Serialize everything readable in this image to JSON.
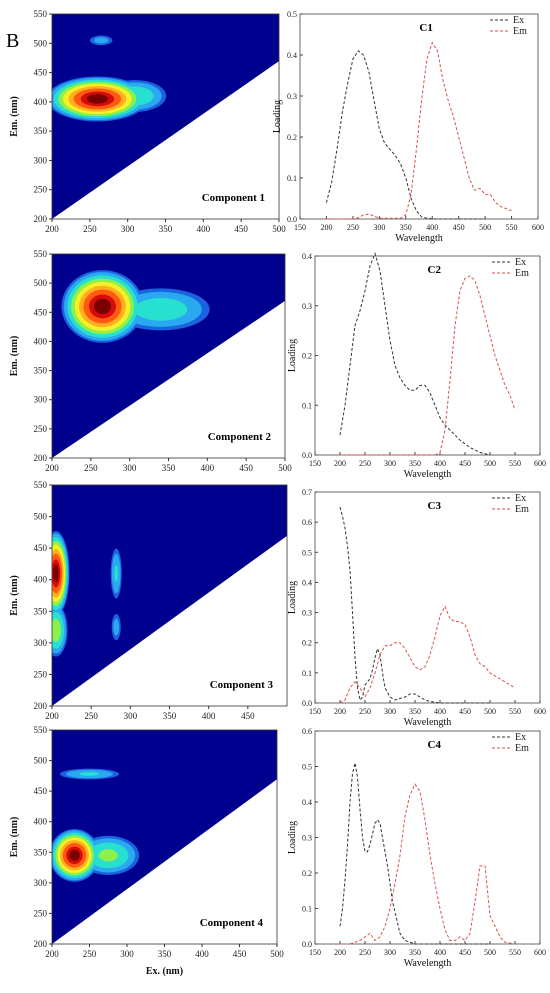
{
  "figure": {
    "panel_letter": "B"
  },
  "colors": {
    "ex": "#333333",
    "em": "#d9534f",
    "contour_bg": "#00008f"
  },
  "chart_data": [
    {
      "type": "heatmap",
      "label": "Component 1",
      "xlabel": "",
      "ylabel": "Em. (nm)",
      "xlim": [
        200,
        500
      ],
      "ylim": [
        200,
        550
      ],
      "x_ticks": [
        200,
        250,
        300,
        350,
        400,
        450,
        500
      ],
      "y_ticks": [
        200,
        250,
        300,
        350,
        400,
        450,
        500,
        550
      ],
      "peaks": [
        {
          "ex": 260,
          "em": 405,
          "rx": 70,
          "ry": 40,
          "intensity": 1.0
        },
        {
          "ex": 310,
          "em": 410,
          "rx": 45,
          "ry": 30,
          "intensity": 0.45
        },
        {
          "ex": 265,
          "em": 505,
          "rx": 18,
          "ry": 10,
          "intensity": 0.25
        }
      ]
    },
    {
      "type": "heatmap",
      "label": "Component 2",
      "xlabel": "",
      "ylabel": "Em. (nm)",
      "xlim": [
        200,
        500
      ],
      "ylim": [
        200,
        550
      ],
      "x_ticks": [
        200,
        250,
        300,
        350,
        400,
        450,
        500
      ],
      "y_ticks": [
        200,
        250,
        300,
        350,
        400,
        450,
        500,
        550
      ],
      "peaks": [
        {
          "ex": 265,
          "em": 460,
          "rx": 55,
          "ry": 65,
          "intensity": 1.0
        },
        {
          "ex": 340,
          "em": 455,
          "rx": 70,
          "ry": 40,
          "intensity": 0.42
        }
      ]
    },
    {
      "type": "heatmap",
      "label": "Component 3",
      "xlabel": "",
      "ylabel": "Em. (nm)",
      "xlim": [
        200,
        500
      ],
      "ylim": [
        200,
        550
      ],
      "x_ticks": [
        200,
        250,
        300,
        350,
        400,
        450
      ],
      "y_ticks": [
        200,
        250,
        300,
        350,
        400,
        450,
        500,
        550
      ],
      "peaks": [
        {
          "ex": 205,
          "em": 410,
          "rx": 18,
          "ry": 70,
          "intensity": 1.0
        },
        {
          "ex": 205,
          "em": 320,
          "rx": 16,
          "ry": 45,
          "intensity": 0.55
        },
        {
          "ex": 282,
          "em": 410,
          "rx": 8,
          "ry": 45,
          "intensity": 0.35
        },
        {
          "ex": 282,
          "em": 325,
          "rx": 7,
          "ry": 25,
          "intensity": 0.25
        }
      ]
    },
    {
      "type": "heatmap",
      "label": "Component 4",
      "xlabel": "Ex. (nm)",
      "ylabel": "Em. (nm)",
      "xlim": [
        200,
        500
      ],
      "ylim": [
        200,
        550
      ],
      "x_ticks": [
        200,
        250,
        300,
        350,
        400,
        450,
        500
      ],
      "y_ticks": [
        200,
        250,
        300,
        350,
        400,
        450,
        500,
        550
      ],
      "peaks": [
        {
          "ex": 230,
          "em": 345,
          "rx": 35,
          "ry": 45,
          "intensity": 1.0
        },
        {
          "ex": 275,
          "em": 345,
          "rx": 45,
          "ry": 35,
          "intensity": 0.5
        },
        {
          "ex": 250,
          "em": 478,
          "rx": 45,
          "ry": 10,
          "intensity": 0.35
        }
      ]
    },
    {
      "type": "line",
      "title": "C1",
      "xlabel": "Wavelength",
      "ylabel": "Loading",
      "xlim": [
        150,
        600
      ],
      "ylim": [
        0,
        0.5
      ],
      "x_ticks": [
        150,
        200,
        250,
        300,
        350,
        400,
        450,
        500,
        550,
        600
      ],
      "y_ticks": [
        0.0,
        0.1,
        0.2,
        0.3,
        0.4,
        0.5
      ],
      "series": [
        {
          "name": "Ex",
          "x": [
            200,
            210,
            220,
            230,
            240,
            250,
            260,
            270,
            280,
            290,
            300,
            310,
            320,
            330,
            340,
            350,
            360,
            370,
            380,
            390,
            400,
            450,
            500
          ],
          "y": [
            0.04,
            0.09,
            0.17,
            0.26,
            0.33,
            0.39,
            0.41,
            0.4,
            0.36,
            0.29,
            0.22,
            0.185,
            0.17,
            0.155,
            0.135,
            0.1,
            0.05,
            0.02,
            0.005,
            0.002,
            0.0,
            0.0,
            0.0
          ]
        },
        {
          "name": "Em",
          "x": [
            200,
            250,
            260,
            270,
            280,
            290,
            300,
            340,
            350,
            360,
            370,
            380,
            390,
            400,
            410,
            420,
            430,
            440,
            450,
            460,
            470,
            480,
            490,
            500,
            510,
            520,
            530,
            550
          ],
          "y": [
            0.0,
            0.0,
            0.003,
            0.01,
            0.012,
            0.007,
            0.002,
            0.002,
            0.01,
            0.06,
            0.17,
            0.29,
            0.39,
            0.43,
            0.41,
            0.34,
            0.29,
            0.25,
            0.2,
            0.15,
            0.1,
            0.07,
            0.075,
            0.06,
            0.06,
            0.04,
            0.03,
            0.02
          ]
        }
      ]
    },
    {
      "type": "line",
      "title": "C2",
      "xlabel": "Wavelength",
      "ylabel": "Loading",
      "xlim": [
        150,
        600
      ],
      "ylim": [
        0,
        0.4
      ],
      "x_ticks": [
        150,
        200,
        250,
        300,
        350,
        400,
        450,
        500,
        550,
        600
      ],
      "y_ticks": [
        0.0,
        0.1,
        0.2,
        0.3,
        0.4
      ],
      "series": [
        {
          "name": "Ex",
          "x": [
            200,
            210,
            220,
            230,
            240,
            250,
            260,
            270,
            280,
            290,
            300,
            310,
            320,
            330,
            340,
            350,
            360,
            370,
            380,
            390,
            400,
            410,
            420,
            440,
            460,
            480,
            500
          ],
          "y": [
            0.04,
            0.1,
            0.18,
            0.26,
            0.29,
            0.33,
            0.38,
            0.405,
            0.37,
            0.3,
            0.23,
            0.18,
            0.155,
            0.14,
            0.13,
            0.13,
            0.14,
            0.14,
            0.125,
            0.1,
            0.075,
            0.06,
            0.05,
            0.03,
            0.015,
            0.005,
            0.0
          ]
        },
        {
          "name": "Em",
          "x": [
            200,
            250,
            300,
            350,
            390,
            400,
            410,
            420,
            430,
            440,
            450,
            460,
            470,
            480,
            490,
            500,
            510,
            520,
            530,
            540,
            550
          ],
          "y": [
            0.0,
            0.0,
            0.0,
            0.0,
            0.0,
            0.005,
            0.05,
            0.15,
            0.26,
            0.33,
            0.355,
            0.36,
            0.35,
            0.32,
            0.28,
            0.24,
            0.2,
            0.17,
            0.14,
            0.12,
            0.09
          ]
        }
      ]
    },
    {
      "type": "line",
      "title": "C3",
      "xlabel": "Wavelength",
      "ylabel": "Loading",
      "xlim": [
        150,
        600
      ],
      "ylim": [
        0,
        0.7
      ],
      "x_ticks": [
        150,
        200,
        250,
        300,
        350,
        400,
        450,
        500,
        550,
        600
      ],
      "y_ticks": [
        0.0,
        0.1,
        0.2,
        0.3,
        0.4,
        0.5,
        0.6,
        0.7
      ],
      "series": [
        {
          "name": "Ex",
          "x": [
            200,
            205,
            210,
            215,
            220,
            225,
            230,
            235,
            240,
            245,
            250,
            255,
            260,
            265,
            270,
            275,
            280,
            285,
            290,
            300,
            310,
            320,
            330,
            340,
            350,
            360,
            370,
            380,
            400,
            450,
            500
          ],
          "y": [
            0.65,
            0.62,
            0.58,
            0.52,
            0.44,
            0.3,
            0.15,
            0.05,
            0.01,
            0.02,
            0.06,
            0.07,
            0.08,
            0.11,
            0.15,
            0.18,
            0.16,
            0.1,
            0.05,
            0.02,
            0.01,
            0.015,
            0.02,
            0.03,
            0.03,
            0.02,
            0.01,
            0.005,
            0.0,
            0.0,
            0.0
          ]
        },
        {
          "name": "Em",
          "x": [
            200,
            210,
            220,
            230,
            240,
            250,
            260,
            270,
            280,
            290,
            300,
            310,
            320,
            330,
            340,
            350,
            360,
            370,
            380,
            390,
            400,
            410,
            420,
            430,
            440,
            450,
            460,
            470,
            480,
            490,
            500,
            510,
            520,
            530,
            540,
            550
          ],
          "y": [
            0.0,
            0.01,
            0.05,
            0.07,
            0.05,
            0.02,
            0.05,
            0.1,
            0.16,
            0.19,
            0.19,
            0.2,
            0.2,
            0.18,
            0.15,
            0.12,
            0.11,
            0.12,
            0.16,
            0.22,
            0.29,
            0.32,
            0.28,
            0.27,
            0.27,
            0.26,
            0.22,
            0.16,
            0.13,
            0.12,
            0.1,
            0.09,
            0.08,
            0.07,
            0.06,
            0.05
          ]
        }
      ]
    },
    {
      "type": "line",
      "title": "C4",
      "xlabel": "Wavelength",
      "ylabel": "Loading",
      "xlim": [
        150,
        600
      ],
      "ylim": [
        0,
        0.6
      ],
      "x_ticks": [
        150,
        200,
        250,
        300,
        350,
        400,
        450,
        500,
        550,
        600
      ],
      "y_ticks": [
        0.0,
        0.1,
        0.2,
        0.3,
        0.4,
        0.5,
        0.6
      ],
      "series": [
        {
          "name": "Ex",
          "x": [
            200,
            205,
            210,
            215,
            220,
            225,
            230,
            235,
            240,
            245,
            250,
            255,
            260,
            265,
            270,
            275,
            280,
            285,
            290,
            295,
            300,
            305,
            310,
            315,
            320,
            330,
            340,
            350,
            400,
            450,
            500
          ],
          "y": [
            0.05,
            0.1,
            0.18,
            0.28,
            0.4,
            0.48,
            0.51,
            0.47,
            0.38,
            0.3,
            0.26,
            0.26,
            0.28,
            0.31,
            0.34,
            0.35,
            0.34,
            0.3,
            0.26,
            0.22,
            0.17,
            0.12,
            0.09,
            0.06,
            0.03,
            0.01,
            0.005,
            0.0,
            0.0,
            0.0,
            0.0
          ]
        },
        {
          "name": "Em",
          "x": [
            200,
            220,
            230,
            240,
            250,
            260,
            270,
            280,
            290,
            300,
            310,
            320,
            330,
            340,
            350,
            360,
            370,
            380,
            390,
            400,
            410,
            420,
            430,
            440,
            450,
            460,
            470,
            480,
            490,
            500,
            510,
            520,
            530,
            550
          ],
          "y": [
            0.0,
            0.0,
            0.005,
            0.01,
            0.02,
            0.03,
            0.01,
            0.02,
            0.05,
            0.1,
            0.17,
            0.25,
            0.36,
            0.42,
            0.45,
            0.43,
            0.35,
            0.25,
            0.17,
            0.1,
            0.04,
            0.01,
            0.01,
            0.02,
            0.01,
            0.03,
            0.12,
            0.22,
            0.22,
            0.08,
            0.05,
            0.02,
            0.005,
            0.0
          ]
        }
      ]
    }
  ]
}
